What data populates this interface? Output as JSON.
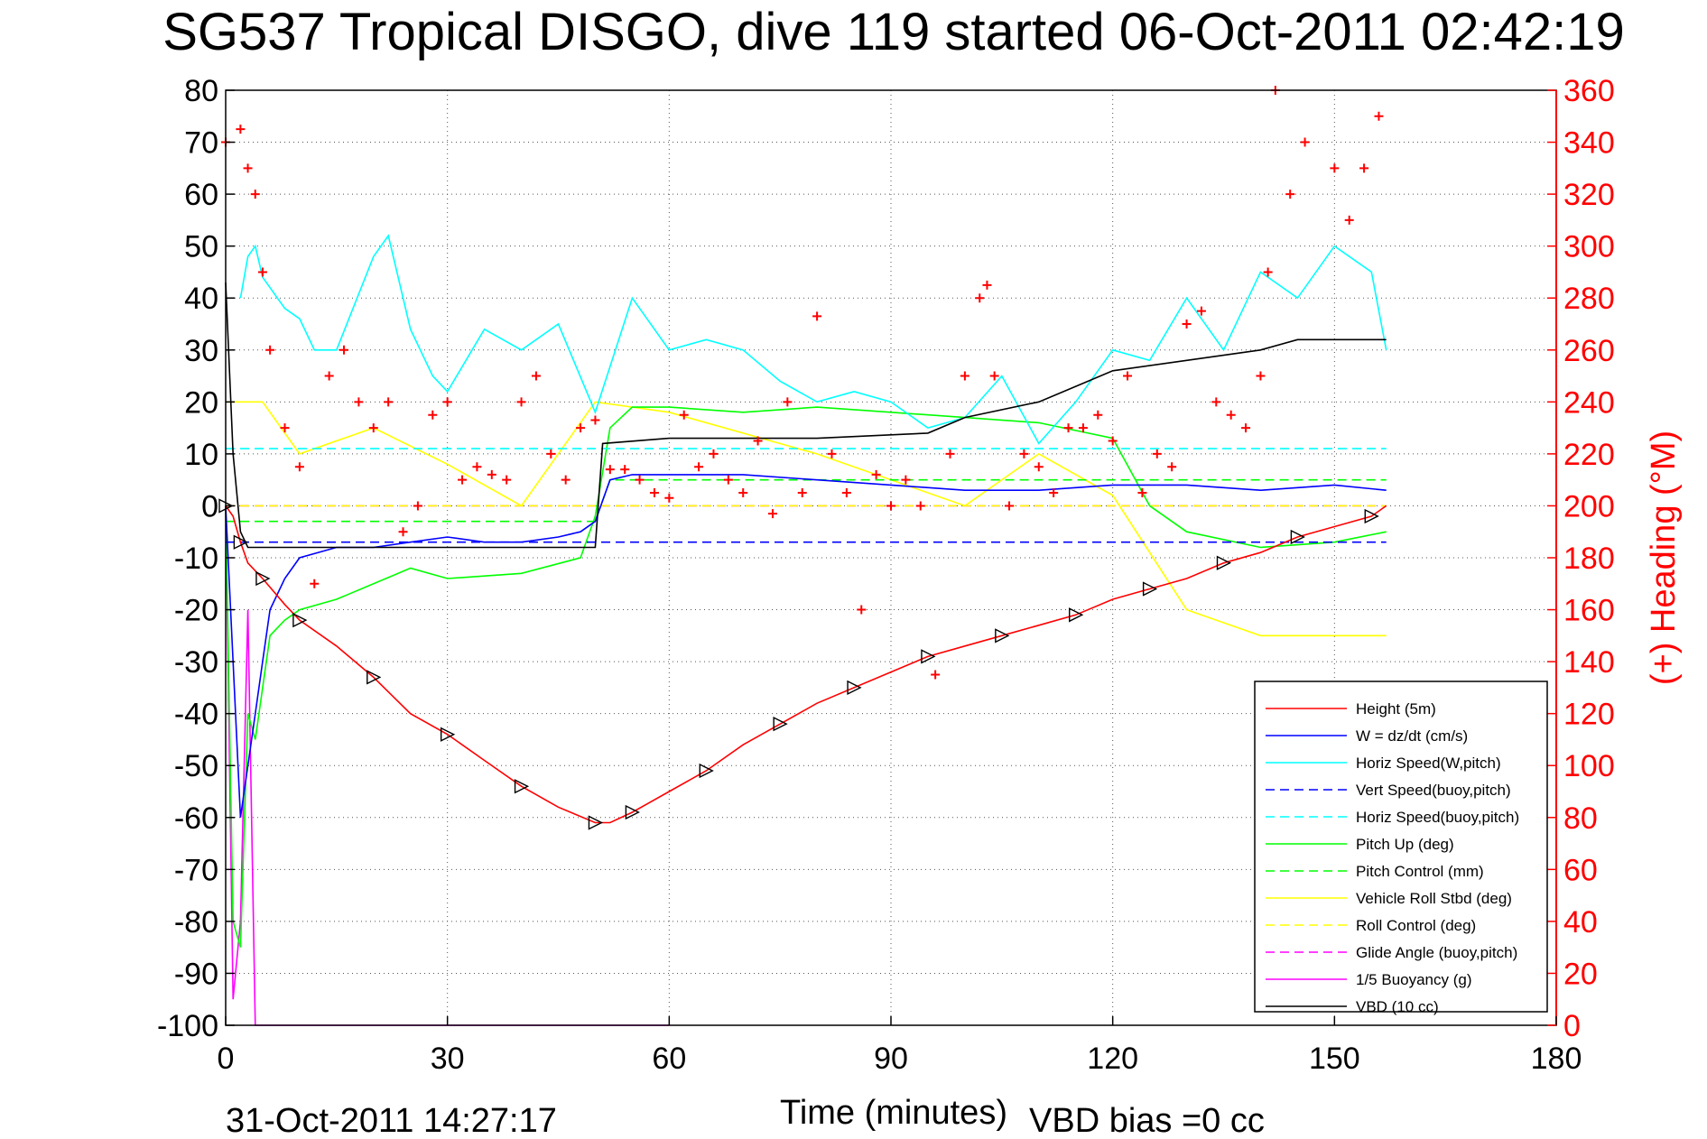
{
  "chart_data": {
    "type": "line",
    "title": "SG537 Tropical DISGO, dive 119 started 06-Oct-2011 02:42:19",
    "xlabel": "Time (minutes)",
    "ylabel_right": "(+) Heading (°M)",
    "xlim": [
      0,
      180
    ],
    "ylim": [
      -100,
      80
    ],
    "ylim_right": [
      0,
      360
    ],
    "xticks": [
      "0",
      "30",
      "60",
      "90",
      "120",
      "150",
      "180"
    ],
    "yticks": [
      "80",
      "70",
      "60",
      "50",
      "40",
      "30",
      "20",
      "10",
      "0",
      "-10",
      "-20",
      "-30",
      "-40",
      "-50",
      "-60",
      "-70",
      "-80",
      "-90",
      "-100"
    ],
    "yticks_right": [
      "360",
      "340",
      "320",
      "300",
      "280",
      "260",
      "240",
      "220",
      "200",
      "180",
      "160",
      "140",
      "120",
      "100",
      "80",
      "60",
      "40",
      "20",
      "0"
    ],
    "grid": true,
    "legend_position": "bottom-right",
    "footer_date": "31-Oct-2011 14:27:17",
    "footer_vbd": "VBD bias =0 cc",
    "colors": {
      "red": "#ff0000",
      "blue": "#0000ff",
      "cyan": "#00ffff",
      "green": "#00ff00",
      "yellow": "#ffff00",
      "magenta": "#ff00ff",
      "black": "#000000"
    },
    "series": [
      {
        "name": "Height (5m)",
        "color": "#ff0000",
        "style": "solid",
        "x": [
          0,
          1,
          2,
          3,
          5,
          8,
          10,
          15,
          20,
          25,
          30,
          35,
          40,
          45,
          50,
          52,
          55,
          60,
          65,
          70,
          75,
          80,
          85,
          90,
          95,
          100,
          105,
          110,
          115,
          120,
          125,
          130,
          135,
          140,
          145,
          150,
          155,
          157
        ],
        "y": [
          0,
          -2,
          -7,
          -11,
          -14,
          -19,
          -22,
          -27,
          -33,
          -40,
          -44,
          -49,
          -54,
          -58,
          -61,
          -61,
          -59,
          -55,
          -51,
          -46,
          -42,
          -38,
          -35,
          -32,
          -29,
          -27,
          -25,
          -23,
          -21,
          -18,
          -16,
          -14,
          -11,
          -9,
          -6,
          -4,
          -2,
          0
        ]
      },
      {
        "name": "W = dz/dt (cm/s)",
        "color": "#0000ff",
        "style": "solid",
        "x": [
          0,
          1,
          2,
          3,
          4,
          5,
          6,
          8,
          10,
          15,
          20,
          25,
          30,
          35,
          40,
          45,
          48,
          50,
          52,
          55,
          60,
          70,
          80,
          90,
          100,
          110,
          120,
          130,
          140,
          150,
          157
        ],
        "y": [
          0,
          -30,
          -60,
          -50,
          -40,
          -30,
          -20,
          -14,
          -10,
          -8,
          -8,
          -7,
          -6,
          -7,
          -7,
          -6,
          -5,
          -3,
          5,
          6,
          6,
          6,
          5,
          4,
          3,
          3,
          4,
          4,
          3,
          4,
          3
        ]
      },
      {
        "name": "Horiz Speed(W,pitch)",
        "color": "#00ffff",
        "style": "solid",
        "x": [
          2,
          3,
          4,
          5,
          8,
          10,
          12,
          15,
          20,
          22,
          25,
          28,
          30,
          35,
          40,
          45,
          50,
          55,
          60,
          65,
          70,
          75,
          80,
          85,
          90,
          95,
          100,
          105,
          110,
          115,
          120,
          125,
          130,
          135,
          140,
          145,
          150,
          155,
          157
        ],
        "y": [
          40,
          48,
          50,
          44,
          38,
          36,
          30,
          30,
          48,
          52,
          34,
          25,
          22,
          34,
          30,
          35,
          18,
          40,
          30,
          32,
          30,
          24,
          20,
          22,
          20,
          15,
          17,
          25,
          12,
          20,
          30,
          28,
          40,
          30,
          45,
          40,
          50,
          45,
          30
        ]
      },
      {
        "name": "Vert Speed(buoy,pitch)",
        "color": "#0000ff",
        "style": "dashed",
        "x": [
          0,
          157
        ],
        "y": [
          -7,
          -7
        ]
      },
      {
        "name": "Horiz Speed(buoy,pitch)",
        "color": "#00ffff",
        "style": "dashed",
        "x": [
          0,
          157
        ],
        "y": [
          11,
          11
        ]
      },
      {
        "name": "Pitch Up (deg)",
        "color": "#00ff00",
        "style": "solid",
        "x": [
          0,
          1,
          2,
          3,
          4,
          6,
          8,
          10,
          15,
          20,
          25,
          30,
          40,
          48,
          50,
          52,
          55,
          60,
          70,
          80,
          90,
          100,
          110,
          120,
          125,
          130,
          140,
          150,
          157
        ],
        "y": [
          0,
          -80,
          -85,
          -40,
          -45,
          -25,
          -22,
          -20,
          -18,
          -15,
          -12,
          -14,
          -13,
          -10,
          -2,
          15,
          19,
          19,
          18,
          19,
          18,
          17,
          16,
          13,
          0,
          -5,
          -8,
          -7,
          -5
        ]
      },
      {
        "name": "Pitch Control (mm)",
        "color": "#00ff00",
        "style": "dashed",
        "x": [
          0,
          50,
          52,
          100,
          157
        ],
        "y": [
          -3,
          -3,
          5,
          5,
          5
        ]
      },
      {
        "name": "Vehicle Roll Stbd (deg)",
        "color": "#ffff00",
        "style": "solid",
        "x": [
          0,
          5,
          10,
          20,
          30,
          40,
          50,
          60,
          80,
          100,
          110,
          120,
          130,
          140,
          150,
          157
        ],
        "y": [
          20,
          20,
          10,
          15,
          8,
          0,
          20,
          18,
          10,
          0,
          10,
          2,
          -20,
          -25,
          -25,
          -25
        ]
      },
      {
        "name": "Roll Control (deg)",
        "color": "#ffff00",
        "style": "dashed",
        "x": [
          0,
          157
        ],
        "y": [
          0,
          0
        ]
      },
      {
        "name": "Glide Angle (buoy,pitch)",
        "color": "#ff00ff",
        "style": "dashed",
        "x": [
          0,
          157
        ],
        "y": [
          0,
          0
        ]
      },
      {
        "name": "1/5 Buoyancy (g)",
        "color": "#ff00ff",
        "style": "solid",
        "x": [
          0,
          1,
          2,
          3,
          4,
          50,
          60
        ],
        "y": [
          0,
          -95,
          -80,
          -20,
          -100,
          -100,
          -100
        ]
      },
      {
        "name": "VBD (10 cc)",
        "color": "#000000",
        "style": "solid",
        "x": [
          0,
          1,
          2,
          3,
          50,
          51,
          60,
          80,
          95,
          100,
          110,
          115,
          120,
          130,
          140,
          145,
          157
        ],
        "y": [
          43,
          10,
          -5,
          -8,
          -8,
          12,
          13,
          13,
          14,
          17,
          20,
          23,
          26,
          28,
          30,
          32,
          32
        ]
      }
    ],
    "heading": {
      "name": "(+) Heading (°M)",
      "color": "#ff0000",
      "marker": "+",
      "x": [
        0,
        2,
        3,
        4,
        5,
        6,
        8,
        10,
        12,
        14,
        16,
        18,
        20,
        22,
        24,
        26,
        28,
        30,
        32,
        34,
        36,
        38,
        40,
        42,
        44,
        46,
        48,
        50,
        52,
        54,
        56,
        58,
        60,
        62,
        64,
        66,
        68,
        70,
        72,
        74,
        76,
        78,
        80,
        82,
        84,
        86,
        88,
        90,
        92,
        94,
        96,
        98,
        100,
        102,
        103,
        104,
        106,
        108,
        110,
        112,
        114,
        116,
        118,
        120,
        122,
        124,
        126,
        128,
        130,
        132,
        134,
        136,
        138,
        140,
        141,
        142,
        144,
        146,
        150,
        152,
        154,
        156
      ],
      "y": [
        340,
        345,
        330,
        320,
        290,
        260,
        230,
        215,
        170,
        250,
        260,
        240,
        230,
        240,
        190,
        200,
        235,
        240,
        210,
        215,
        212,
        210,
        240,
        250,
        220,
        210,
        230,
        233,
        214,
        214,
        210,
        205,
        203,
        235,
        215,
        220,
        210,
        205,
        225,
        197,
        240,
        205,
        273,
        220,
        205,
        160,
        212,
        200,
        210,
        200,
        135,
        220,
        250,
        280,
        285,
        250,
        200,
        220,
        215,
        205,
        230,
        230,
        235,
        225,
        250,
        205,
        220,
        215,
        270,
        275,
        240,
        235,
        230,
        250,
        290,
        360,
        320,
        340,
        330,
        310,
        330,
        350
      ]
    }
  }
}
